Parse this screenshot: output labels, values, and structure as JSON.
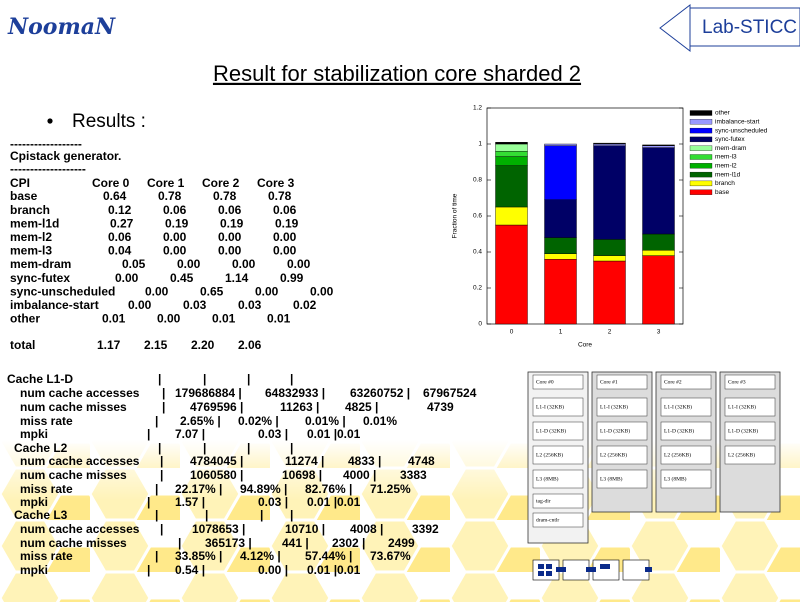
{
  "header": {
    "logo_left": "NoomaN",
    "logo_right": "Lab-STICC",
    "title": "Result for stabilization core sharded 2",
    "bullet": "Results :"
  },
  "cpistack": {
    "lines": [
      "------------------",
      "Cpistack generator.",
      "-------------------"
    ],
    "columns": [
      "CPI",
      "Core 0",
      "Core 1",
      "Core 2",
      "Core 3"
    ],
    "rows": [
      {
        "label": "base",
        "values": [
          "0.64",
          "0.78",
          "0.78",
          "0.78"
        ]
      },
      {
        "label": "branch",
        "values": [
          "0.12",
          "0.06",
          "0.06",
          "0.06"
        ]
      },
      {
        "label": "mem-l1d",
        "values": [
          "0.27",
          "0.19",
          "0.19",
          "0.19"
        ]
      },
      {
        "label": "mem-l2",
        "values": [
          "0.06",
          "0.00",
          "0.00",
          "0.00"
        ]
      },
      {
        "label": "mem-l3",
        "values": [
          "0.04",
          "0.00",
          "0.00",
          "0.00"
        ]
      },
      {
        "label": "mem-dram",
        "values": [
          "0.05",
          "0.00",
          "0.00",
          "0.00"
        ]
      },
      {
        "label": "sync-futex",
        "values": [
          "0.00",
          "0.45",
          "1.14",
          "0.99"
        ]
      },
      {
        "label": "sync-unscheduled",
        "values": [
          "0.00",
          "0.65",
          "0.00",
          "0.00"
        ]
      },
      {
        "label": "imbalance-start",
        "values": [
          "0.00",
          "0.03",
          "0.03",
          "0.02"
        ]
      },
      {
        "label": "other",
        "values": [
          "0.01",
          "0.00",
          "0.01",
          "0.01"
        ]
      }
    ],
    "total": {
      "label": "total",
      "values": [
        "1.17",
        "2.15",
        "2.20",
        "2.06"
      ]
    }
  },
  "cache": {
    "rows": [
      {
        "label": "Cache L1-D",
        "cells": [
          "|",
          "|",
          "|",
          "|"
        ]
      },
      {
        "label": "num cache accesses",
        "cells": [
          "|",
          "179686884 |",
          "64832933 |",
          "63260752 |",
          "67967524"
        ]
      },
      {
        "label": "num cache misses",
        "cells": [
          "|",
          "4769596 |",
          "11263 |",
          "4825 |",
          "4739"
        ]
      },
      {
        "label": "miss rate",
        "cells": [
          "|",
          "2.65% |",
          "0.02% |",
          "0.01% |",
          "0.01%"
        ]
      },
      {
        "label": "mpki",
        "cells": [
          "|",
          "7.07 |",
          "0.03 |",
          "0.01 |",
          "0.01"
        ]
      },
      {
        "label": "Cache L2",
        "cells": [
          "|",
          "|",
          "|",
          "|"
        ]
      },
      {
        "label": "num cache accesses",
        "cells": [
          "|",
          "4784045 |",
          "11274 |",
          "4833 |",
          "4748"
        ]
      },
      {
        "label": "num cache misses",
        "cells": [
          "|",
          "1060580 |",
          "10698 |",
          "4000 |",
          "3383"
        ]
      },
      {
        "label": "miss rate",
        "cells": [
          "|",
          "22.17% |",
          "94.89% |",
          "82.76% |",
          "71.25%"
        ]
      },
      {
        "label": "mpki",
        "cells": [
          "|",
          "1.57 |",
          "0.03 |",
          "0.01 |",
          "0.01"
        ]
      },
      {
        "label": "Cache L3",
        "cells": [
          "|",
          "|",
          "|",
          "|"
        ]
      },
      {
        "label": "num cache accesses",
        "cells": [
          "|",
          "1078653 |",
          "10710 |",
          "4008 |",
          "3392"
        ]
      },
      {
        "label": "num cache misses",
        "cells": [
          "|",
          "365173 |",
          "441 |",
          "2302 |",
          "2499"
        ]
      },
      {
        "label": "miss rate",
        "cells": [
          "|",
          "33.85% |",
          "4.12% |",
          "57.44% |",
          "73.67%"
        ]
      },
      {
        "label": "mpki",
        "cells": [
          "|",
          "0.54 |",
          "0.00 |",
          "0.01 |",
          "0.01"
        ]
      }
    ]
  },
  "chart_data": {
    "type": "stacked-bar",
    "x_label": "Core",
    "y_label": "Fraction of time",
    "categories": [
      "0",
      "1",
      "2",
      "3"
    ],
    "ylim": [
      0,
      1.2
    ],
    "yticks": [
      0,
      0.2,
      0.4,
      0.6,
      0.8,
      1,
      1.2
    ],
    "series": [
      {
        "name": "base",
        "color": "#ff0000",
        "values": [
          0.55,
          0.36,
          0.35,
          0.38
        ]
      },
      {
        "name": "branch",
        "color": "#ffff00",
        "values": [
          0.1,
          0.03,
          0.03,
          0.03
        ]
      },
      {
        "name": "mem-l1d",
        "color": "#006400",
        "values": [
          0.23,
          0.09,
          0.09,
          0.09
        ]
      },
      {
        "name": "mem-l2",
        "color": "#00b000",
        "values": [
          0.05,
          0,
          0,
          0
        ]
      },
      {
        "name": "mem-l3",
        "color": "#33dd33",
        "values": [
          0.03,
          0,
          0,
          0
        ]
      },
      {
        "name": "mem-dram",
        "color": "#99ff99",
        "values": [
          0.04,
          0,
          0,
          0
        ]
      },
      {
        "name": "sync-futex",
        "color": "#000066",
        "values": [
          0,
          0.21,
          0.52,
          0.48
        ]
      },
      {
        "name": "sync-unscheduled",
        "color": "#0000ff",
        "values": [
          0,
          0.3,
          0,
          0
        ]
      },
      {
        "name": "imbalance-start",
        "color": "#9999ff",
        "values": [
          0,
          0.01,
          0.01,
          0.01
        ]
      },
      {
        "name": "other",
        "color": "#000000",
        "values": [
          0.01,
          0,
          0.005,
          0.005
        ]
      }
    ]
  },
  "diagram": {
    "nodes": [
      {
        "label": "Core #0",
        "blocks": [
          "L1-I (32KB)",
          "L1-D (32KB)",
          "L2 (256KB)",
          "L3 (8MB)",
          "tag-dir",
          "dram-cntlr"
        ]
      },
      {
        "label": "Core #1",
        "blocks": [
          "L1-I (32KB)",
          "L1-D (32KB)",
          "L2 (256KB)",
          "L3 (8MB)"
        ]
      },
      {
        "label": "Core #2",
        "blocks": [
          "L1-I (32KB)",
          "L1-D (32KB)",
          "L2 (256KB)",
          "L3 (8MB)"
        ]
      },
      {
        "label": "Core #3",
        "blocks": [
          "L1-I (32KB)",
          "L1-D (32KB)",
          "L2 (256KB)"
        ]
      }
    ]
  }
}
